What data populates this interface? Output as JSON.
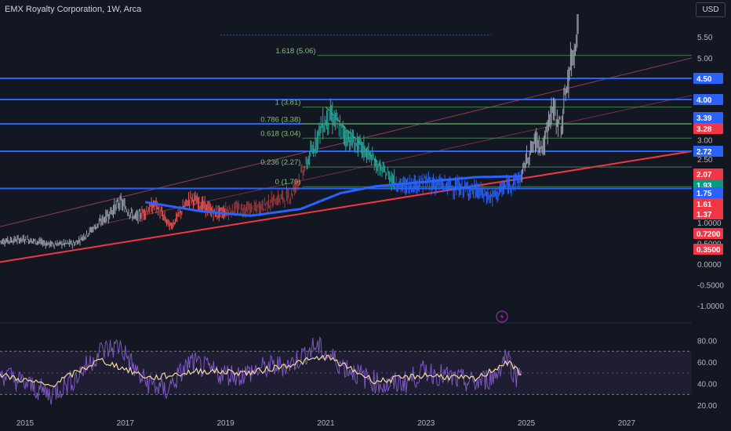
{
  "header": {
    "title": "EMX Royalty Corporation, 1W, Arca",
    "currency": "USD"
  },
  "colors": {
    "background": "#131722",
    "blue_line": "#2962ff",
    "red_trend": "#f23645",
    "fib": "#4caf50",
    "rsi": "#7e57c2",
    "rsi_ma": "#f0d9a0",
    "candle_up": "#26a69a",
    "candle_down": "#ef5350"
  },
  "chart_data": [
    {
      "type": "candlestick",
      "title": "EMX Royalty Corporation, 1W, Arca",
      "x_ticks": [
        "2015",
        "2017",
        "2019",
        "2021",
        "2023",
        "2025",
        "2027"
      ],
      "y_ticks": [
        "5.50",
        "5.00",
        "3.00",
        "2.50",
        "1.0000",
        "0.5000",
        "0.0000",
        "-0.5000",
        "-1.0000"
      ],
      "price_badges": [
        {
          "label": "4.50",
          "color": "#2962ff"
        },
        {
          "label": "4.00",
          "color": "#2962ff"
        },
        {
          "label": "3.39",
          "color": "#2962ff"
        },
        {
          "label": "3.28",
          "color": "#f23645"
        },
        {
          "label": "2.72",
          "color": "#2962ff"
        },
        {
          "label": "2.07",
          "color": "#f23645"
        },
        {
          "label": "1.93",
          "color": "#089981"
        },
        {
          "label": "1.75",
          "color": "#2962ff"
        },
        {
          "label": "1.61",
          "color": "#f23645"
        },
        {
          "label": "1.37",
          "color": "#f23645"
        },
        {
          "label": "0.7200",
          "color": "#f23645"
        },
        {
          "label": "0.3500",
          "color": "#f23645"
        }
      ],
      "horizontal_levels": [
        4.5,
        4.0,
        3.39,
        2.72,
        1.75
      ],
      "fib_levels": [
        {
          "label": "1.618 (5.06)",
          "value": 5.06
        },
        {
          "label": "1 (3.81)",
          "value": 3.81
        },
        {
          "label": "0.786 (3.38)",
          "value": 3.38
        },
        {
          "label": "0.618 (3.04)",
          "value": 3.04
        },
        {
          "label": "0.236 (2.27)",
          "value": 2.27
        },
        {
          "label": "0 (1.79)",
          "value": 1.79
        }
      ],
      "price_path": [
        {
          "x": 2014.5,
          "y": 0.55
        },
        {
          "x": 2015.0,
          "y": 0.6
        },
        {
          "x": 2015.5,
          "y": 0.48
        },
        {
          "x": 2016.0,
          "y": 0.5
        },
        {
          "x": 2016.5,
          "y": 1.0
        },
        {
          "x": 2016.9,
          "y": 1.45
        },
        {
          "x": 2017.2,
          "y": 1.1
        },
        {
          "x": 2017.6,
          "y": 1.4
        },
        {
          "x": 2017.9,
          "y": 0.9
        },
        {
          "x": 2018.3,
          "y": 1.55
        },
        {
          "x": 2018.8,
          "y": 1.2
        },
        {
          "x": 2019.2,
          "y": 1.3
        },
        {
          "x": 2019.6,
          "y": 1.3
        },
        {
          "x": 2020.0,
          "y": 1.5
        },
        {
          "x": 2020.3,
          "y": 1.6
        },
        {
          "x": 2020.6,
          "y": 2.3
        },
        {
          "x": 2020.9,
          "y": 3.3
        },
        {
          "x": 2021.1,
          "y": 3.6
        },
        {
          "x": 2021.4,
          "y": 3.1
        },
        {
          "x": 2021.8,
          "y": 2.7
        },
        {
          "x": 2022.1,
          "y": 2.2
        },
        {
          "x": 2022.5,
          "y": 1.8
        },
        {
          "x": 2023.0,
          "y": 1.9
        },
        {
          "x": 2023.5,
          "y": 1.8
        },
        {
          "x": 2024.0,
          "y": 1.7
        },
        {
          "x": 2024.3,
          "y": 1.55
        },
        {
          "x": 2024.6,
          "y": 1.8
        },
        {
          "x": 2024.9,
          "y": 2.0
        },
        {
          "x": 2025.0,
          "y": 2.5
        },
        {
          "x": 2025.2,
          "y": 3.0
        },
        {
          "x": 2025.35,
          "y": 2.8
        },
        {
          "x": 2025.5,
          "y": 3.8
        },
        {
          "x": 2025.7,
          "y": 3.3
        },
        {
          "x": 2025.8,
          "y": 4.3
        },
        {
          "x": 2025.95,
          "y": 5.2
        },
        {
          "x": 2026.05,
          "y": 6.0
        }
      ],
      "moving_average": [
        {
          "x": 2017.4,
          "y": 1.45
        },
        {
          "x": 2018.5,
          "y": 1.25
        },
        {
          "x": 2019.5,
          "y": 1.15
        },
        {
          "x": 2020.5,
          "y": 1.3
        },
        {
          "x": 2021.3,
          "y": 1.65
        },
        {
          "x": 2022.0,
          "y": 1.8
        },
        {
          "x": 2023.0,
          "y": 1.9
        },
        {
          "x": 2024.0,
          "y": 2.0
        },
        {
          "x": 2024.9,
          "y": 2.02
        }
      ],
      "red_trendline": [
        {
          "x": 2014.5,
          "y": 0.05
        },
        {
          "x": 2028.3,
          "y": 2.72
        }
      ],
      "upper_channel": [
        {
          "x": 2014.5,
          "y": 0.9
        },
        {
          "x": 2028.3,
          "y": 5.0
        }
      ],
      "ylim": [
        -1.1,
        6.1
      ],
      "xlim": [
        2014.5,
        2028.3
      ]
    },
    {
      "type": "line",
      "title": "",
      "y_ticks": [
        "80.00",
        "60.00",
        "40.00",
        "20.00"
      ],
      "bands": [
        70,
        30
      ],
      "midline": 50,
      "rsi_path": [
        {
          "x": 2014.5,
          "y": 50
        },
        {
          "x": 2015.0,
          "y": 40
        },
        {
          "x": 2015.5,
          "y": 30
        },
        {
          "x": 2016.0,
          "y": 45
        },
        {
          "x": 2016.5,
          "y": 70
        },
        {
          "x": 2016.9,
          "y": 75
        },
        {
          "x": 2017.3,
          "y": 45
        },
        {
          "x": 2017.8,
          "y": 33
        },
        {
          "x": 2018.3,
          "y": 60
        },
        {
          "x": 2018.8,
          "y": 50
        },
        {
          "x": 2019.3,
          "y": 48
        },
        {
          "x": 2019.8,
          "y": 55
        },
        {
          "x": 2020.3,
          "y": 58
        },
        {
          "x": 2020.8,
          "y": 75
        },
        {
          "x": 2021.0,
          "y": 68
        },
        {
          "x": 2021.4,
          "y": 55
        },
        {
          "x": 2021.8,
          "y": 45
        },
        {
          "x": 2022.2,
          "y": 38
        },
        {
          "x": 2022.6,
          "y": 42
        },
        {
          "x": 2023.0,
          "y": 52
        },
        {
          "x": 2023.5,
          "y": 45
        },
        {
          "x": 2024.0,
          "y": 40
        },
        {
          "x": 2024.4,
          "y": 48
        },
        {
          "x": 2024.6,
          "y": 68
        },
        {
          "x": 2024.8,
          "y": 45
        },
        {
          "x": 2024.9,
          "y": 60
        }
      ],
      "rsi_ma_path": [
        {
          "x": 2014.5,
          "y": 48
        },
        {
          "x": 2015.5,
          "y": 38
        },
        {
          "x": 2016.5,
          "y": 62
        },
        {
          "x": 2017.5,
          "y": 45
        },
        {
          "x": 2018.5,
          "y": 52
        },
        {
          "x": 2019.5,
          "y": 50
        },
        {
          "x": 2020.5,
          "y": 60
        },
        {
          "x": 2021.0,
          "y": 65
        },
        {
          "x": 2022.0,
          "y": 42
        },
        {
          "x": 2023.0,
          "y": 48
        },
        {
          "x": 2024.0,
          "y": 44
        },
        {
          "x": 2024.6,
          "y": 60
        },
        {
          "x": 2024.9,
          "y": 50
        }
      ],
      "ylim": [
        15,
        92
      ]
    }
  ]
}
